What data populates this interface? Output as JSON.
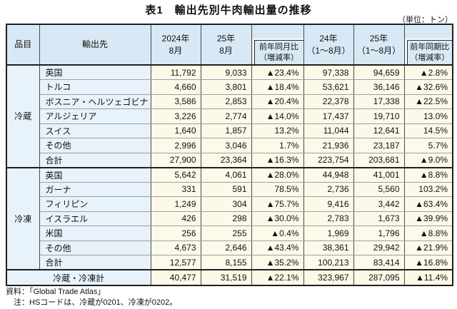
{
  "title": "表1　輸出先別牛肉輸出量の推移",
  "unit_label": "（単位：トン）",
  "table": {
    "headers": {
      "item": "品目",
      "destination": "輸出先",
      "aug_2024": "2024年\n8月",
      "aug_2025": "25年\n8月",
      "mom_change": "前年同月比\n（増減率）",
      "jan_aug_2024": "24年\n（1～8月）",
      "jan_aug_2025": "25年\n（1～8月）",
      "yoy_change": "前年同期比\n（増減率）"
    },
    "sections": [
      {
        "item": "冷蔵",
        "rows": [
          [
            "英国",
            "11,792",
            "9,033",
            "▲23.4%",
            "97,338",
            "94,659",
            "▲2.8%"
          ],
          [
            "トルコ",
            "4,660",
            "3,801",
            "▲18.4%",
            "53,621",
            "36,146",
            "▲32.6%"
          ],
          [
            "ボスニア・ヘルツェゴビナ",
            "3,586",
            "2,853",
            "▲20.4%",
            "22,378",
            "17,338",
            "▲22.5%"
          ],
          [
            "アルジェリア",
            "3,226",
            "2,774",
            "▲14.0%",
            "17,437",
            "19,710",
            "13.0%"
          ],
          [
            "スイス",
            "1,640",
            "1,857",
            "13.2%",
            "11,044",
            "12,641",
            "14.5%"
          ],
          [
            "その他",
            "2,996",
            "3,046",
            "1.7%",
            "21,936",
            "23,187",
            "5.7%"
          ],
          [
            "合計",
            "27,900",
            "23,364",
            "▲16.3%",
            "223,754",
            "203,681",
            "▲9.0%"
          ]
        ]
      },
      {
        "item": "冷凍",
        "rows": [
          [
            "英国",
            "5,642",
            "4,061",
            "▲28.0%",
            "44,948",
            "41,001",
            "▲8.8%"
          ],
          [
            "ガーナ",
            "331",
            "591",
            "78.5%",
            "2,736",
            "5,560",
            "103.2%"
          ],
          [
            "フィリピン",
            "1,249",
            "304",
            "▲75.7%",
            "9,416",
            "3,442",
            "▲63.4%"
          ],
          [
            "イスラエル",
            "426",
            "298",
            "▲30.0%",
            "2,783",
            "1,673",
            "▲39.9%"
          ],
          [
            "米国",
            "256",
            "255",
            "▲0.4%",
            "1,969",
            "1,796",
            "▲8.8%"
          ],
          [
            "その他",
            "4,673",
            "2,646",
            "▲43.4%",
            "38,361",
            "29,942",
            "▲21.9%"
          ],
          [
            "合計",
            "12,577",
            "8,155",
            "▲35.2%",
            "100,213",
            "83,414",
            "▲16.8%"
          ]
        ]
      }
    ],
    "grand_total": [
      "冷蔵・冷凍計",
      "40,477",
      "31,519",
      "▲22.1%",
      "323,967",
      "287,095",
      "▲11.4%"
    ]
  },
  "notes": [
    "資料：「Global Trade Atlas」",
    "　注：HSコードは、冷蔵が0201、冷凍が0202。"
  ],
  "colors": {
    "header_bg": "#d8e9f5",
    "label_cell_bg": "#e7f2fa",
    "value_cell_bg": "#fdf9e8",
    "outer_border": "#1f1f1f"
  }
}
